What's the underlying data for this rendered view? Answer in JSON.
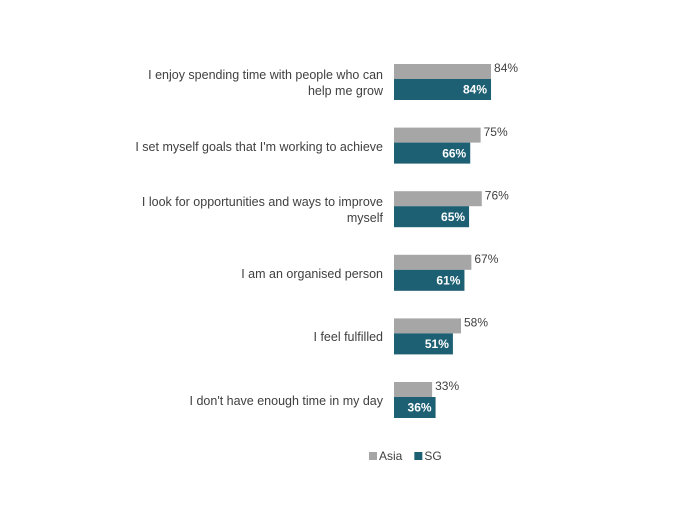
{
  "chart_data": {
    "type": "hbar",
    "categories": [
      "I enjoy spending time with people who can help me grow",
      "I set myself goals that I'm working to achieve",
      "I look for opportunities and ways to improve myself",
      "I am an organised person",
      "I feel fulfilled",
      "I don't have enough time in my day"
    ],
    "series": [
      {
        "name": "Asia",
        "color": "#a6a6a6",
        "values": [
          84,
          75,
          76,
          67,
          58,
          33
        ],
        "value_labels": [
          "84%",
          "75%",
          "76%",
          "67%",
          "58%",
          "33%"
        ]
      },
      {
        "name": "SG",
        "color": "#1d5f73",
        "values": [
          84,
          66,
          65,
          61,
          51,
          36
        ],
        "value_labels": [
          "84%",
          "66%",
          "65%",
          "61%",
          "51%",
          "36%"
        ]
      }
    ],
    "legend": "bottom"
  }
}
